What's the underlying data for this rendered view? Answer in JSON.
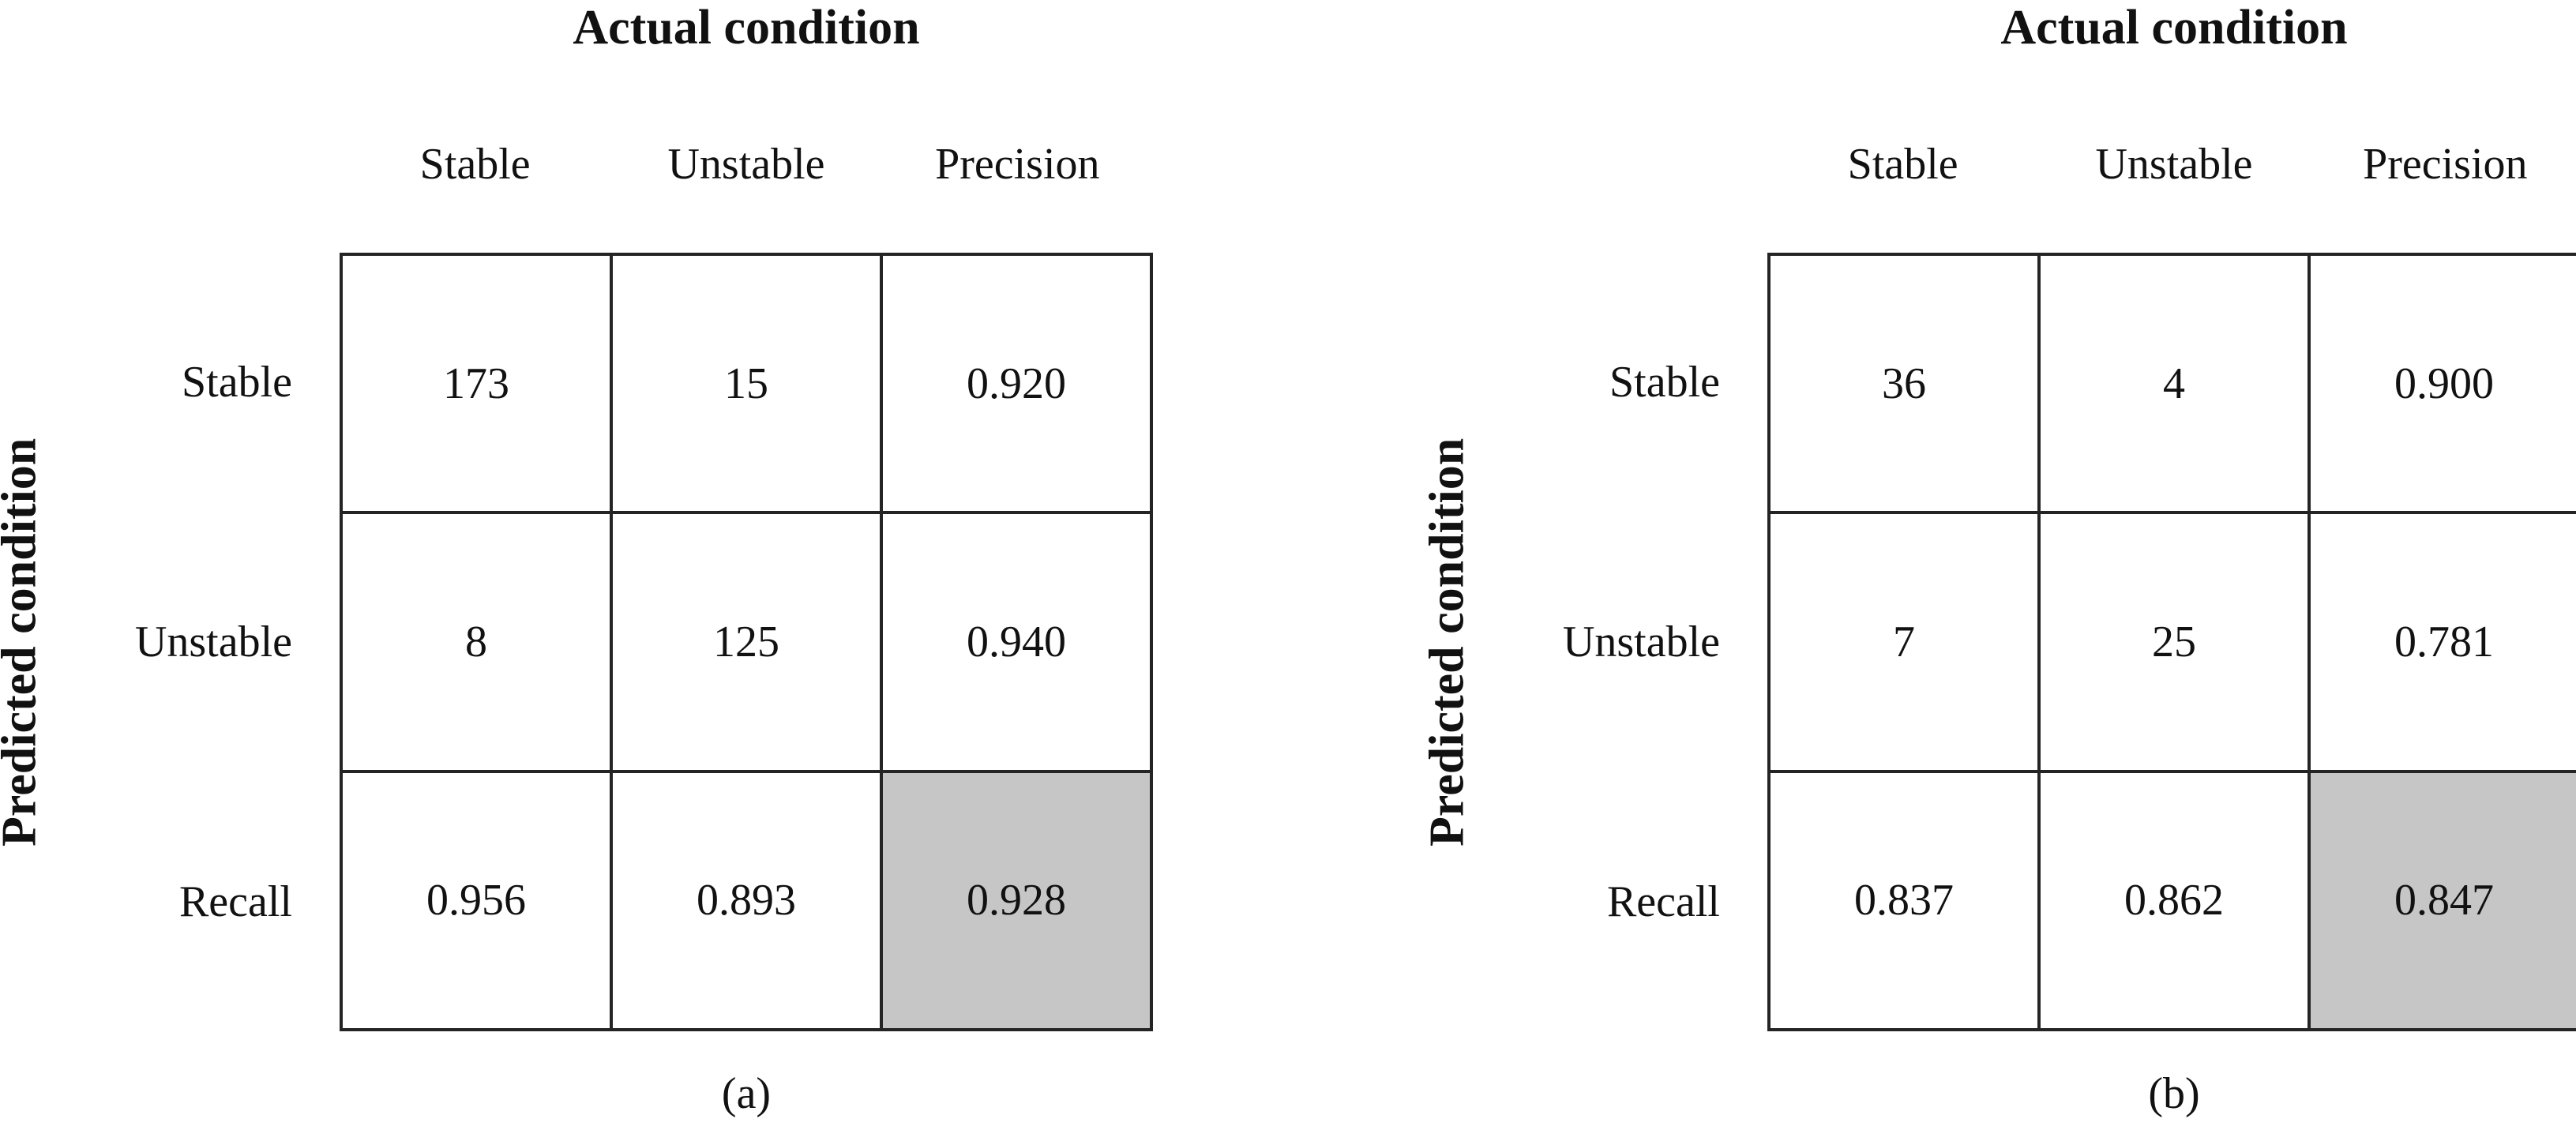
{
  "figure": {
    "panels": [
      {
        "caption": "(a)",
        "top_axis_title": "Actual condition",
        "left_axis_title": "Predicted condition",
        "col_headers": [
          "Stable",
          "Unstable",
          "Precision"
        ],
        "row_headers": [
          "Stable",
          "Unstable",
          "Recall"
        ],
        "cells": [
          [
            "173",
            "15",
            "0.920"
          ],
          [
            "8",
            "125",
            "0.940"
          ],
          [
            "0.956",
            "0.893",
            "0.928"
          ]
        ]
      },
      {
        "caption": "(b)",
        "top_axis_title": "Actual condition",
        "left_axis_title": "Predicted condition",
        "col_headers": [
          "Stable",
          "Unstable",
          "Precision"
        ],
        "row_headers": [
          "Stable",
          "Unstable",
          "Recall"
        ],
        "cells": [
          [
            "36",
            "4",
            "0.900"
          ],
          [
            "7",
            "25",
            "0.781"
          ],
          [
            "0.837",
            "0.862",
            "0.847"
          ]
        ]
      }
    ]
  },
  "colors": {
    "highlight_cell": "#c6c6c6",
    "grid_line": "#242424",
    "text": "#111111",
    "background": "#ffffff"
  },
  "chart_data": [
    {
      "type": "table",
      "title": "Actual condition",
      "ylabel": "Predicted condition",
      "caption": "(a)",
      "columns": [
        "Stable",
        "Unstable",
        "Precision"
      ],
      "rows": [
        "Stable",
        "Unstable",
        "Recall"
      ],
      "values": [
        [
          173,
          15,
          0.92
        ],
        [
          8,
          125,
          0.94
        ],
        [
          0.956,
          0.893,
          0.928
        ]
      ],
      "notes": "Confusion matrix; bottom-right cell (0.928) shaded gray as overall accuracy"
    },
    {
      "type": "table",
      "title": "Actual condition",
      "ylabel": "Predicted condition",
      "caption": "(b)",
      "columns": [
        "Stable",
        "Unstable",
        "Precision"
      ],
      "rows": [
        "Stable",
        "Unstable",
        "Recall"
      ],
      "values": [
        [
          36,
          4,
          0.9
        ],
        [
          7,
          25,
          0.781
        ],
        [
          0.837,
          0.862,
          0.847
        ]
      ],
      "notes": "Confusion matrix; bottom-right cell (0.847) shaded gray as overall accuracy"
    }
  ]
}
